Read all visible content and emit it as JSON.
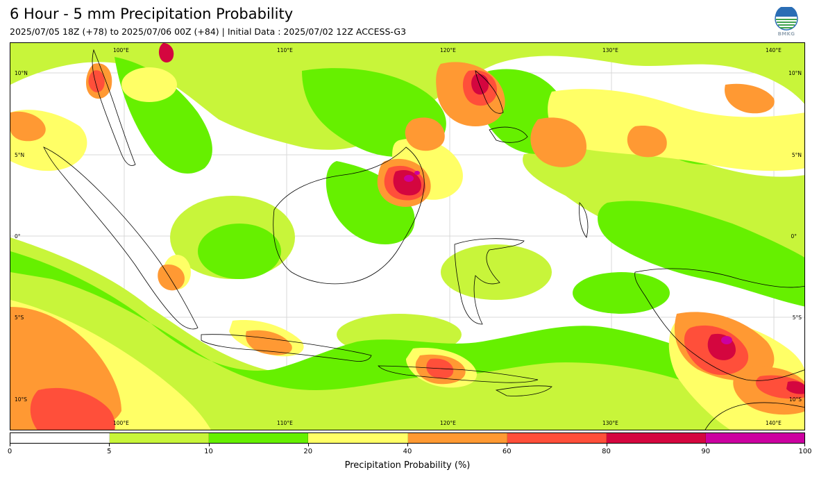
{
  "header": {
    "title": "6 Hour - 5 mm Precipitation Probability",
    "subtitle": "2025/07/05 18Z (+78) to 2025/07/06 00Z (+84) | Initial Data : 2025/07/02 12Z ACCESS-G3",
    "logo_text": "BMKG"
  },
  "map": {
    "lon_labels_top": [
      "100°E",
      "110°E",
      "120°E",
      "130°E",
      "140°E"
    ],
    "lon_labels_bottom": [
      "100°E",
      "110°E",
      "120°E",
      "130°E",
      "140°E"
    ],
    "lat_labels_left": [
      "10°N",
      "5°N",
      "0°",
      "5°S",
      "10°S"
    ],
    "lat_labels_right": [
      "10°N",
      "5°N",
      "0°",
      "5°S",
      "10°S"
    ],
    "colors": {
      "p0_5": "#ffffff",
      "p5_10": "#c8f53a",
      "p10_20": "#66f000",
      "p20_40": "#ffff66",
      "p40_60": "#ff9933",
      "p60_80": "#ff4f3a",
      "p80_90": "#d4063f",
      "p90_100": "#cc00a0",
      "coast": "#000000"
    }
  },
  "colorbar": {
    "ticks": [
      "0",
      "5",
      "10",
      "20",
      "40",
      "60",
      "80",
      "90",
      "100"
    ],
    "colors": [
      "#ffffff",
      "#c8f53a",
      "#66f000",
      "#ffff66",
      "#ff9933",
      "#ff4f3a",
      "#d4063f",
      "#cc00a0"
    ],
    "label": "Precipitation Probability (%)"
  }
}
